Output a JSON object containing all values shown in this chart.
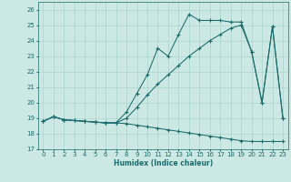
{
  "title": "",
  "xlabel": "Humidex (Indice chaleur)",
  "bg_color": "#cce8e4",
  "grid_color": "#aad4cc",
  "line_color": "#1a6b6b",
  "xlim": [
    -0.5,
    23.5
  ],
  "ylim": [
    17,
    26.5
  ],
  "xticks": [
    0,
    1,
    2,
    3,
    4,
    5,
    6,
    7,
    8,
    9,
    10,
    11,
    12,
    13,
    14,
    15,
    16,
    17,
    18,
    19,
    20,
    21,
    22,
    23
  ],
  "yticks": [
    17,
    18,
    19,
    20,
    21,
    22,
    23,
    24,
    25,
    26
  ],
  "line1_x": [
    0,
    1,
    2,
    3,
    4,
    5,
    6,
    7,
    8,
    9,
    10,
    11,
    12,
    13,
    14,
    15,
    16,
    17,
    18,
    19,
    20,
    21,
    22,
    23
  ],
  "line1_y": [
    18.8,
    19.1,
    18.9,
    18.85,
    18.8,
    18.75,
    18.7,
    18.7,
    19.4,
    20.6,
    21.8,
    23.5,
    23.0,
    24.4,
    25.7,
    25.3,
    25.3,
    25.3,
    25.2,
    25.2,
    23.3,
    20.0,
    24.9,
    19.0
  ],
  "line2_x": [
    0,
    1,
    2,
    3,
    4,
    5,
    6,
    7,
    8,
    9,
    10,
    11,
    12,
    13,
    14,
    15,
    16,
    17,
    18,
    19,
    20,
    21,
    22,
    23
  ],
  "line2_y": [
    18.8,
    19.1,
    18.9,
    18.85,
    18.8,
    18.75,
    18.7,
    18.7,
    19.0,
    19.7,
    20.5,
    21.2,
    21.8,
    22.4,
    23.0,
    23.5,
    24.0,
    24.4,
    24.8,
    25.0,
    23.3,
    20.0,
    24.9,
    19.0
  ],
  "line3_x": [
    0,
    1,
    2,
    3,
    4,
    5,
    6,
    7,
    8,
    9,
    10,
    11,
    12,
    13,
    14,
    15,
    16,
    17,
    18,
    19,
    20,
    21,
    22,
    23
  ],
  "line3_y": [
    18.8,
    19.1,
    18.9,
    18.85,
    18.8,
    18.75,
    18.7,
    18.7,
    18.65,
    18.55,
    18.45,
    18.35,
    18.25,
    18.15,
    18.05,
    17.95,
    17.85,
    17.75,
    17.65,
    17.55,
    17.5,
    17.5,
    17.5,
    17.5
  ]
}
